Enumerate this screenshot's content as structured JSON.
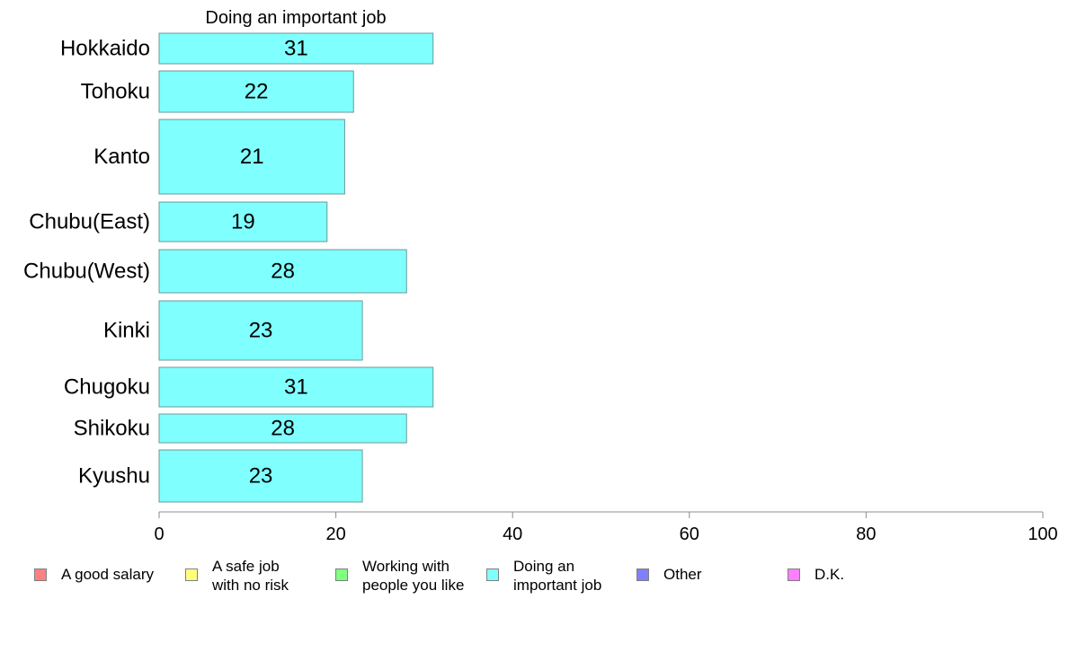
{
  "chart_data": {
    "type": "bar",
    "orientation": "horizontal",
    "title": "Doing an important job",
    "categories": [
      "Hokkaido",
      "Tohoku",
      "Kanto",
      "Chubu(East)",
      "Chubu(West)",
      "Kinki",
      "Chugoku",
      "Shikoku",
      "Kyushu"
    ],
    "series": [
      {
        "name": "Doing an important job",
        "color": "#80ffff",
        "values": [
          31,
          22,
          21,
          19,
          28,
          23,
          31,
          28,
          23
        ],
        "value_labels": [
          "31",
          "22",
          "21",
          "19",
          "28",
          "23",
          "31",
          "28",
          "23"
        ]
      }
    ],
    "xlim": [
      0,
      100
    ],
    "x_ticks": [
      0,
      20,
      40,
      60,
      80,
      100
    ],
    "x_tick_labels": [
      "0",
      "20",
      "40",
      "60",
      "80",
      "100"
    ],
    "xlabel": "",
    "ylabel": "",
    "grid": false,
    "legend_position": "bottom",
    "legend": [
      {
        "label": "A good salary",
        "color": "#ff8080"
      },
      {
        "label": "A safe job\nwith no risk",
        "color": "#ffff80"
      },
      {
        "label": "Working with\npeople you like",
        "color": "#80ff80"
      },
      {
        "label": "Doing an\nimportant job",
        "color": "#80ffff"
      },
      {
        "label": "Other",
        "color": "#8080ff"
      },
      {
        "label": "D.K.",
        "color": "#ff80ff"
      }
    ]
  }
}
